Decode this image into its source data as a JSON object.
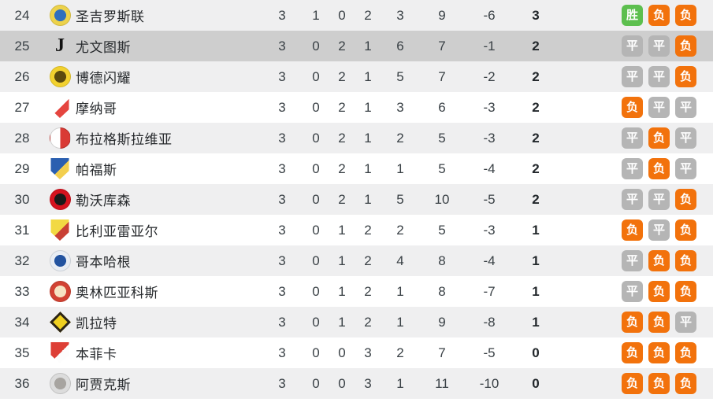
{
  "colors": {
    "win": "#5cbf4e",
    "draw": "#b5b5b5",
    "loss": "#f2720c",
    "row_highlight": "#cecece",
    "row_stripe": "#efeff0",
    "text": "#394045"
  },
  "form_labels": {
    "win": "胜",
    "draw": "平",
    "loss": "负"
  },
  "table": {
    "rows": [
      {
        "pos": "24",
        "team": "圣吉罗斯联",
        "played": "3",
        "won": "1",
        "drawn": "0",
        "lost": "2",
        "gf": "3",
        "ga": "9",
        "gd": "-6",
        "pts": "3",
        "form": [
          "win",
          "loss",
          "loss"
        ],
        "highlighted": false,
        "logo": {
          "name": "union-sg",
          "shape": "circle",
          "colors": [
            "#edd24a",
            "#2f6fbd"
          ]
        }
      },
      {
        "pos": "25",
        "team": "尤文图斯",
        "played": "3",
        "won": "0",
        "drawn": "2",
        "lost": "1",
        "gf": "6",
        "ga": "7",
        "gd": "-1",
        "pts": "2",
        "form": [
          "draw",
          "draw",
          "loss"
        ],
        "highlighted": true,
        "logo": {
          "name": "juventus",
          "shape": "glyph",
          "colors": [
            "#cecece",
            "#111111"
          ],
          "glyph": "J"
        }
      },
      {
        "pos": "26",
        "team": "博德闪耀",
        "played": "3",
        "won": "0",
        "drawn": "2",
        "lost": "1",
        "gf": "5",
        "ga": "7",
        "gd": "-2",
        "pts": "2",
        "form": [
          "draw",
          "draw",
          "loss"
        ],
        "highlighted": false,
        "logo": {
          "name": "bodo-glimt",
          "shape": "circle",
          "colors": [
            "#f2d12e",
            "#5b4a0e"
          ]
        }
      },
      {
        "pos": "27",
        "team": "摩纳哥",
        "played": "3",
        "won": "0",
        "drawn": "2",
        "lost": "1",
        "gf": "3",
        "ga": "6",
        "gd": "-3",
        "pts": "2",
        "form": [
          "loss",
          "draw",
          "draw"
        ],
        "highlighted": false,
        "logo": {
          "name": "monaco",
          "shape": "shield",
          "colors": [
            "#ffffff",
            "#e5453f"
          ]
        }
      },
      {
        "pos": "28",
        "team": "布拉格斯拉维亚",
        "played": "3",
        "won": "0",
        "drawn": "2",
        "lost": "1",
        "gf": "2",
        "ga": "5",
        "gd": "-3",
        "pts": "2",
        "form": [
          "draw",
          "loss",
          "draw"
        ],
        "highlighted": false,
        "logo": {
          "name": "slavia-praha",
          "shape": "split",
          "colors": [
            "#ffffff",
            "#d93a35"
          ]
        }
      },
      {
        "pos": "29",
        "team": "帕福斯",
        "played": "3",
        "won": "0",
        "drawn": "2",
        "lost": "1",
        "gf": "1",
        "ga": "5",
        "gd": "-4",
        "pts": "2",
        "form": [
          "draw",
          "loss",
          "draw"
        ],
        "highlighted": false,
        "logo": {
          "name": "pafos",
          "shape": "shield",
          "colors": [
            "#2b5fb0",
            "#f3cf4e"
          ]
        }
      },
      {
        "pos": "30",
        "team": "勒沃库森",
        "played": "3",
        "won": "0",
        "drawn": "2",
        "lost": "1",
        "gf": "5",
        "ga": "10",
        "gd": "-5",
        "pts": "2",
        "form": [
          "draw",
          "draw",
          "loss"
        ],
        "highlighted": false,
        "logo": {
          "name": "leverkusen",
          "shape": "circle",
          "colors": [
            "#d5121e",
            "#1a1a1a"
          ]
        }
      },
      {
        "pos": "31",
        "team": "比利亚雷亚尔",
        "played": "3",
        "won": "0",
        "drawn": "1",
        "lost": "2",
        "gf": "2",
        "ga": "5",
        "gd": "-3",
        "pts": "1",
        "form": [
          "loss",
          "draw",
          "loss"
        ],
        "highlighted": false,
        "logo": {
          "name": "villarreal",
          "shape": "shield",
          "colors": [
            "#f2d943",
            "#c94034"
          ]
        }
      },
      {
        "pos": "32",
        "team": "哥本哈根",
        "played": "3",
        "won": "0",
        "drawn": "1",
        "lost": "2",
        "gf": "4",
        "ga": "8",
        "gd": "-4",
        "pts": "1",
        "form": [
          "draw",
          "loss",
          "loss"
        ],
        "highlighted": false,
        "logo": {
          "name": "copenhagen",
          "shape": "circle",
          "colors": [
            "#e8edf4",
            "#2253a0"
          ]
        }
      },
      {
        "pos": "33",
        "team": "奥林匹亚科斯",
        "played": "3",
        "won": "0",
        "drawn": "1",
        "lost": "2",
        "gf": "1",
        "ga": "8",
        "gd": "-7",
        "pts": "1",
        "form": [
          "draw",
          "loss",
          "loss"
        ],
        "highlighted": false,
        "logo": {
          "name": "olympiacos",
          "shape": "circle",
          "colors": [
            "#d24233",
            "#f6e3c3"
          ]
        }
      },
      {
        "pos": "34",
        "team": "凯拉特",
        "played": "3",
        "won": "0",
        "drawn": "1",
        "lost": "2",
        "gf": "1",
        "ga": "9",
        "gd": "-8",
        "pts": "1",
        "form": [
          "loss",
          "loss",
          "draw"
        ],
        "highlighted": false,
        "logo": {
          "name": "kairat",
          "shape": "diamond",
          "colors": [
            "#f0d01f",
            "#2b2417"
          ]
        }
      },
      {
        "pos": "35",
        "team": "本菲卡",
        "played": "3",
        "won": "0",
        "drawn": "0",
        "lost": "3",
        "gf": "2",
        "ga": "7",
        "gd": "-5",
        "pts": "0",
        "form": [
          "loss",
          "loss",
          "loss"
        ],
        "highlighted": false,
        "logo": {
          "name": "benfica",
          "shape": "shield",
          "colors": [
            "#dd3f36",
            "#fdfdfd"
          ]
        }
      },
      {
        "pos": "36",
        "team": "阿贾克斯",
        "played": "3",
        "won": "0",
        "drawn": "0",
        "lost": "3",
        "gf": "1",
        "ga": "11",
        "gd": "-10",
        "pts": "0",
        "form": [
          "loss",
          "loss",
          "loss"
        ],
        "highlighted": false,
        "logo": {
          "name": "ajax",
          "shape": "circle",
          "colors": [
            "#dcdcdc",
            "#a7a4a0"
          ]
        }
      }
    ]
  }
}
